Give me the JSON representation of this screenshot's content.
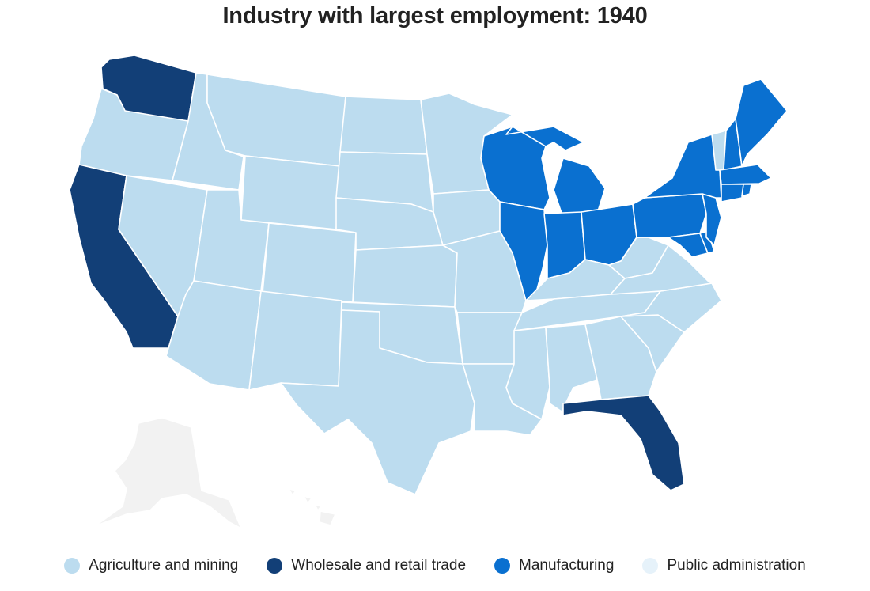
{
  "title": "Industry with largest employment: 1940",
  "legend": [
    {
      "label": "Agriculture and mining",
      "color": "#bcdcef"
    },
    {
      "label": "Wholesale and retail trade",
      "color": "#123f77"
    },
    {
      "label": "Manufacturing",
      "color": "#0a70d0"
    },
    {
      "label": "Public administration",
      "color": "#e6f2fa"
    }
  ],
  "no_data_color": "#f2f2f2",
  "regions": [
    {
      "state": "Washington",
      "industry": "Wholesale and retail trade"
    },
    {
      "state": "California",
      "industry": "Wholesale and retail trade"
    },
    {
      "state": "Florida",
      "industry": "Wholesale and retail trade"
    },
    {
      "state": "Wisconsin",
      "industry": "Manufacturing"
    },
    {
      "state": "Michigan",
      "industry": "Manufacturing"
    },
    {
      "state": "Illinois",
      "industry": "Manufacturing"
    },
    {
      "state": "Indiana",
      "industry": "Manufacturing"
    },
    {
      "state": "Ohio",
      "industry": "Manufacturing"
    },
    {
      "state": "Pennsylvania",
      "industry": "Manufacturing"
    },
    {
      "state": "New York",
      "industry": "Manufacturing"
    },
    {
      "state": "New Jersey",
      "industry": "Manufacturing"
    },
    {
      "state": "Maryland",
      "industry": "Manufacturing"
    },
    {
      "state": "Delaware",
      "industry": "Manufacturing"
    },
    {
      "state": "Connecticut",
      "industry": "Manufacturing"
    },
    {
      "state": "Rhode Island",
      "industry": "Manufacturing"
    },
    {
      "state": "Massachusetts",
      "industry": "Manufacturing"
    },
    {
      "state": "New Hampshire",
      "industry": "Manufacturing"
    },
    {
      "state": "Maine",
      "industry": "Manufacturing"
    },
    {
      "state": "Vermont",
      "industry": "Agriculture and mining"
    },
    {
      "state": "Oregon",
      "industry": "Agriculture and mining"
    },
    {
      "state": "Idaho",
      "industry": "Agriculture and mining"
    },
    {
      "state": "Montana",
      "industry": "Agriculture and mining"
    },
    {
      "state": "Wyoming",
      "industry": "Agriculture and mining"
    },
    {
      "state": "Nevada",
      "industry": "Agriculture and mining"
    },
    {
      "state": "Utah",
      "industry": "Agriculture and mining"
    },
    {
      "state": "Colorado",
      "industry": "Agriculture and mining"
    },
    {
      "state": "Arizona",
      "industry": "Agriculture and mining"
    },
    {
      "state": "New Mexico",
      "industry": "Agriculture and mining"
    },
    {
      "state": "North Dakota",
      "industry": "Agriculture and mining"
    },
    {
      "state": "South Dakota",
      "industry": "Agriculture and mining"
    },
    {
      "state": "Nebraska",
      "industry": "Agriculture and mining"
    },
    {
      "state": "Kansas",
      "industry": "Agriculture and mining"
    },
    {
      "state": "Oklahoma",
      "industry": "Agriculture and mining"
    },
    {
      "state": "Texas",
      "industry": "Agriculture and mining"
    },
    {
      "state": "Minnesota",
      "industry": "Agriculture and mining"
    },
    {
      "state": "Iowa",
      "industry": "Agriculture and mining"
    },
    {
      "state": "Missouri",
      "industry": "Agriculture and mining"
    },
    {
      "state": "Arkansas",
      "industry": "Agriculture and mining"
    },
    {
      "state": "Louisiana",
      "industry": "Agriculture and mining"
    },
    {
      "state": "Mississippi",
      "industry": "Agriculture and mining"
    },
    {
      "state": "Alabama",
      "industry": "Agriculture and mining"
    },
    {
      "state": "Georgia",
      "industry": "Agriculture and mining"
    },
    {
      "state": "Tennessee",
      "industry": "Agriculture and mining"
    },
    {
      "state": "Kentucky",
      "industry": "Agriculture and mining"
    },
    {
      "state": "West Virginia",
      "industry": "Agriculture and mining"
    },
    {
      "state": "Virginia",
      "industry": "Agriculture and mining"
    },
    {
      "state": "North Carolina",
      "industry": "Agriculture and mining"
    },
    {
      "state": "South Carolina",
      "industry": "Agriculture and mining"
    },
    {
      "state": "Alaska",
      "industry": null
    },
    {
      "state": "Hawaii",
      "industry": null
    }
  ]
}
